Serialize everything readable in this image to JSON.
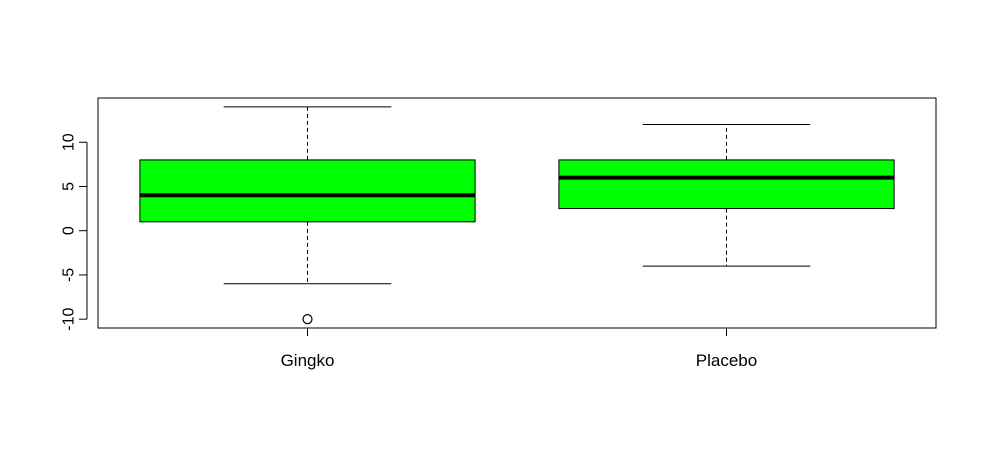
{
  "chart_data": {
    "type": "boxplot",
    "title": "",
    "xlabel": "",
    "ylabel": "",
    "categories": [
      "Gingko",
      "Placebo"
    ],
    "ylim": [
      -11,
      15
    ],
    "yticks": [
      -10,
      -5,
      0,
      5,
      10
    ],
    "ytick_labels": [
      "-10",
      "-5",
      "0",
      "5",
      "10"
    ],
    "boxes": [
      {
        "category": "Gingko",
        "whisker_low": -6,
        "q1": 1,
        "median": 4,
        "q3": 8,
        "whisker_high": 14,
        "outliers": [
          -10
        ]
      },
      {
        "category": "Placebo",
        "whisker_low": -4,
        "q1": 2.5,
        "median": 6,
        "q3": 8,
        "whisker_high": 12,
        "outliers": []
      }
    ],
    "box_color": "#00ff00",
    "line_color": "#000000",
    "grid": false,
    "legend": "none"
  }
}
